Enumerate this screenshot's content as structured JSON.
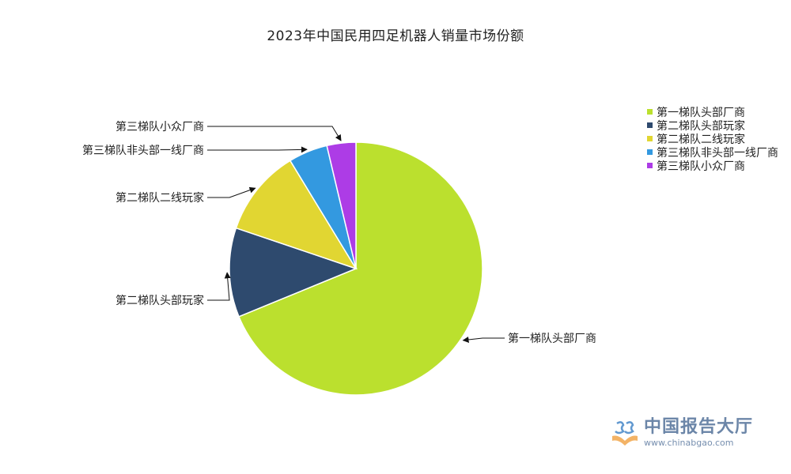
{
  "chart_data": {
    "type": "pie",
    "title": "2023年中国民用四足机器人销量市场份额",
    "categories": [
      "第一梯队头部厂商",
      "第二梯队头部玩家",
      "第二梯队二线玩家",
      "第三梯队非头部一线厂商",
      "第三梯队小众厂商"
    ],
    "values": [
      68.8,
      11.4,
      11.1,
      5.0,
      3.7
    ],
    "unit": "%",
    "colors": [
      "#bbe02e",
      "#2e4a6e",
      "#e1d632",
      "#3399e0",
      "#ad3ce6"
    ],
    "legend_position": "top-right",
    "start_angle": "12 o'clock, clockwise"
  },
  "watermark": {
    "name": "中国报告大厅",
    "url": "www.chinabgao.com"
  }
}
